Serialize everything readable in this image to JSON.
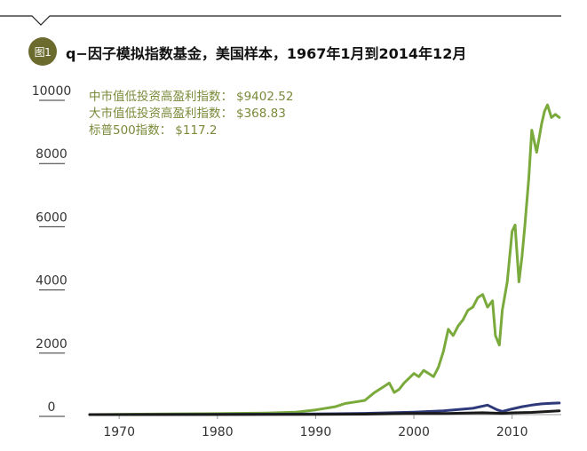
{
  "badge": "图1",
  "title": "q−因子模拟指数基金，美国样本，1967年1月到2014年12月",
  "legend": [
    {
      "label": "中市值低投资高盈利指数：",
      "value": "$9402.52"
    },
    {
      "label": "大市值低投资高盈利指数：",
      "value": "$368.83"
    },
    {
      "label": "标普500指数：",
      "value": "$117.2"
    }
  ],
  "colors": {
    "green": "#7aaa3c",
    "navy": "#2e3a7a",
    "black": "#1a1a1a",
    "legend_text": "#7a8a3a",
    "badge": "#6b6b2e"
  },
  "chart_data": {
    "type": "line",
    "title": "q−因子模拟指数基金，美国样本，1967年1月到2014年12月",
    "xlim": [
      1967,
      2015
    ],
    "ylim": [
      0,
      10000
    ],
    "x_ticks": [
      1970,
      1980,
      1990,
      2000,
      2010
    ],
    "y_ticks": [
      0,
      2000,
      4000,
      6000,
      8000,
      10000
    ],
    "grid": false,
    "legend_position": "top-left",
    "series": [
      {
        "name": "中市值低投资高盈利指数",
        "color": "#7aaa3c",
        "x": [
          1967,
          1975,
          1980,
          1985,
          1988,
          1990,
          1992,
          1993,
          1994,
          1995,
          1996,
          1997,
          1997.5,
          1998,
          1998.5,
          1999,
          2000,
          2000.5,
          2001,
          2001.5,
          2002,
          2002.5,
          2003,
          2003.5,
          2004,
          2004.5,
          2005,
          2005.5,
          2006,
          2006.5,
          2007,
          2007.5,
          2008,
          2008.3,
          2008.7,
          2009,
          2009.5,
          2010,
          2010.3,
          2010.7,
          2011,
          2011.3,
          2011.7,
          2012,
          2012.5,
          2013,
          2013.3,
          2013.6,
          2014,
          2014.4,
          2014.8
        ],
        "y": [
          0,
          20,
          30,
          50,
          80,
          150,
          250,
          350,
          400,
          450,
          700,
          900,
          1000,
          700,
          800,
          1000,
          1300,
          1200,
          1400,
          1300,
          1200,
          1500,
          2000,
          2700,
          2500,
          2800,
          3000,
          3300,
          3400,
          3700,
          3800,
          3400,
          3600,
          2500,
          2200,
          3300,
          4200,
          5800,
          6000,
          4200,
          5000,
          6000,
          7500,
          9000,
          8300,
          9200,
          9600,
          9800,
          9400,
          9500,
          9402.52
        ]
      },
      {
        "name": "大市值低投资高盈利指数",
        "color": "#2e3a7a",
        "x": [
          1967,
          1980,
          1990,
          1995,
          2000,
          2003,
          2006,
          2007.5,
          2008.5,
          2009,
          2010,
          2011,
          2012,
          2013,
          2014,
          2014.8
        ],
        "y": [
          0,
          5,
          20,
          40,
          80,
          120,
          200,
          300,
          150,
          100,
          180,
          250,
          300,
          340,
          360,
          368.83
        ]
      },
      {
        "name": "标普500指数",
        "color": "#1a1a1a",
        "x": [
          1967,
          1980,
          1990,
          1995,
          2000,
          2003,
          2007,
          2009,
          2010,
          2012,
          2014,
          2014.8
        ],
        "y": [
          0,
          3,
          8,
          15,
          40,
          35,
          60,
          40,
          55,
          70,
          105,
          117.2
        ]
      }
    ]
  }
}
